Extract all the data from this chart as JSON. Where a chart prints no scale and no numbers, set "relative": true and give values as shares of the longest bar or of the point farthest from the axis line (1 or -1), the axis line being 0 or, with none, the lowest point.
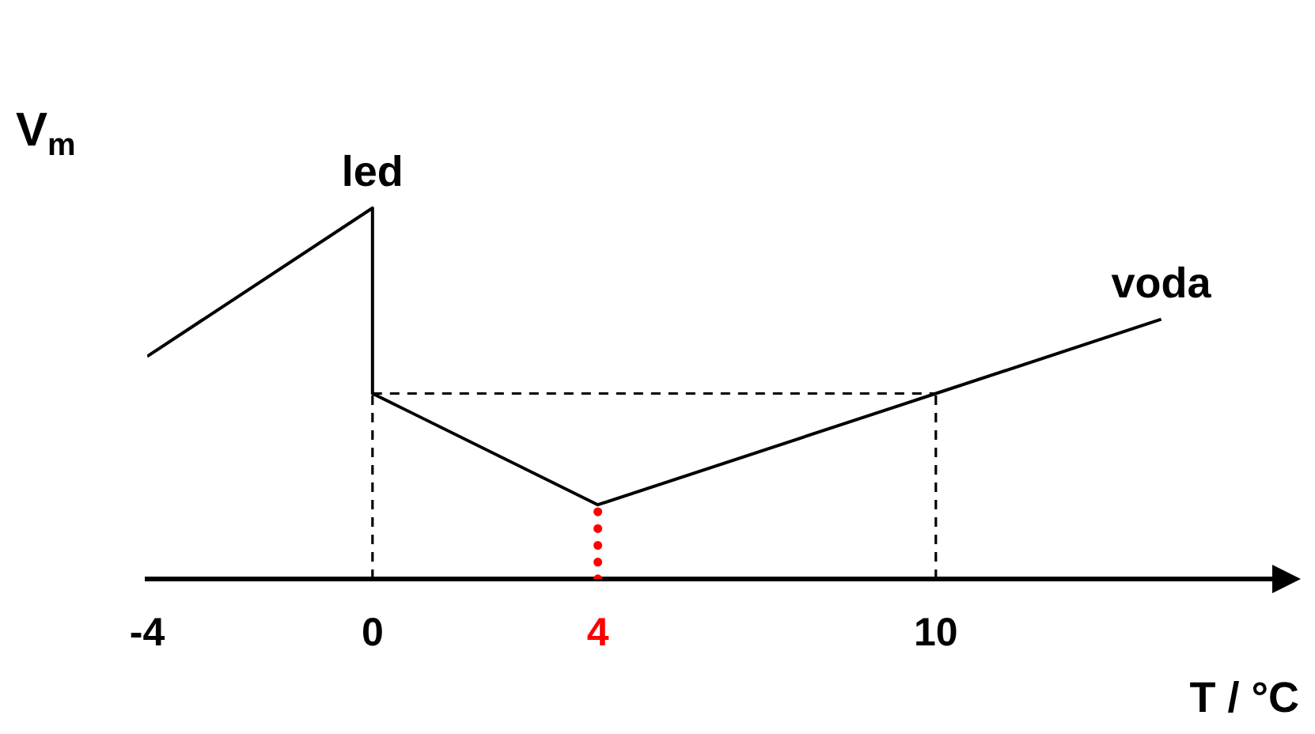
{
  "chart_data": {
    "type": "line",
    "xlabel": "T / °C",
    "ylabel": "V$_{m}$",
    "relative": true,
    "marker": "none",
    "xlim": [
      -4,
      16
    ],
    "xticks": [
      -4,
      0,
      4,
      10
    ],
    "series": [
      {
        "name": "led",
        "color": "#000000",
        "x": [
          -4,
          0,
          0
        ],
        "values": [
          0.6,
          1,
          0.5
        ]
      },
      {
        "name": "voda",
        "color": "#000000",
        "x": [
          0,
          4,
          10,
          14
        ],
        "values": [
          0.5,
          0.2,
          0.5,
          0.7
        ]
      },
      {
        "color": "#000000",
        "line_style": "dashed",
        "x": [
          0,
          10
        ],
        "values": [
          0.5,
          0.5
        ]
      },
      {
        "color": "#000000",
        "line_style": "dashed",
        "x": [
          0,
          0
        ],
        "values": [
          0,
          0.5
        ]
      },
      {
        "color": "#000000",
        "line_style": "dashed",
        "x": [
          10,
          10
        ],
        "values": [
          0,
          0.5
        ]
      },
      {
        "color": "#ff0000",
        "line_style": "dotted",
        "x": [
          4,
          4
        ],
        "values": [
          0,
          0.2
        ]
      }
    ]
  }
}
